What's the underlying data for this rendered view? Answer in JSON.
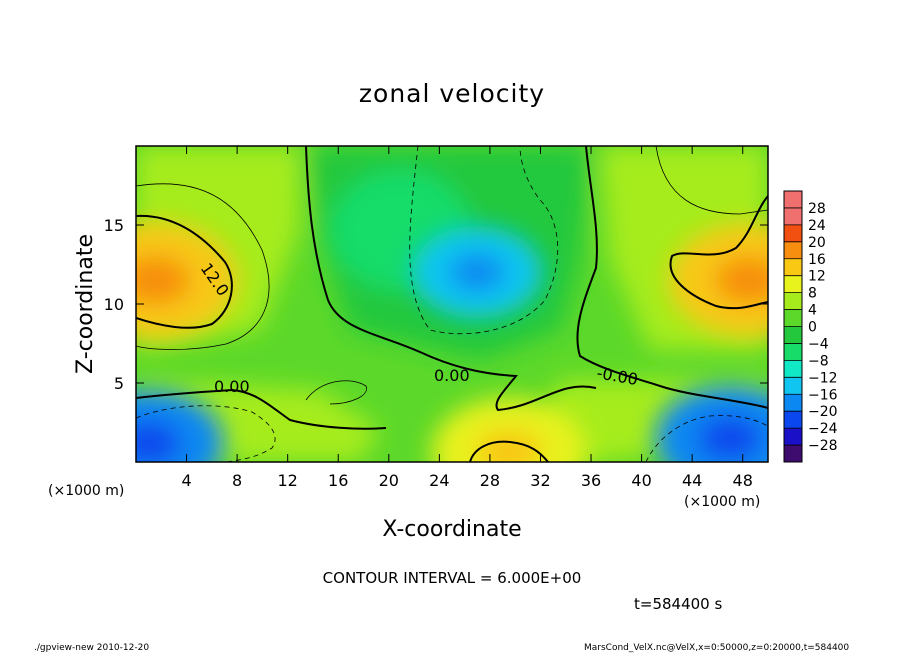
{
  "chart_data": {
    "type": "heatmap",
    "title": "zonal velocity",
    "xlabel": "X-coordinate",
    "ylabel": "Z-coordinate",
    "x_unit": "(×1000 m)",
    "y_unit": "(×1000 m)",
    "xlim": [
      0,
      50
    ],
    "ylim": [
      0,
      20
    ],
    "x_ticks": [
      4,
      8,
      12,
      16,
      20,
      24,
      28,
      32,
      36,
      40,
      44,
      48
    ],
    "y_ticks": [
      5,
      10,
      15
    ],
    "colorbar": {
      "levels": [
        -28,
        -24,
        -20,
        -16,
        -12,
        -8,
        -4,
        0,
        4,
        8,
        12,
        16,
        20,
        24,
        28
      ],
      "labels": [
        "28",
        "24",
        "20",
        "16",
        "12",
        "8",
        "4",
        "0",
        "−4",
        "−8",
        "−12",
        "−16",
        "−20",
        "−24",
        "−28"
      ],
      "colors": [
        "#3e0c6e",
        "#1a10c8",
        "#0a47ee",
        "#0b88f2",
        "#10c6f0",
        "#10e8c6",
        "#18dc6a",
        "#23c83c",
        "#5cd82a",
        "#a6ec1c",
        "#e8f21c",
        "#f8c814",
        "#f78e10",
        "#f25010",
        "#f07070"
      ]
    },
    "contour_labels": [
      "12.0",
      "0.00",
      "0.00",
      "-0.00"
    ],
    "contour_interval": "CONTOUR INTERVAL = 6.000E+00",
    "time": "t=584400 s",
    "features": [
      {
        "x": 1.5,
        "z": 11.5,
        "value": 17
      },
      {
        "x": 48.5,
        "z": 11.5,
        "value": 16
      },
      {
        "x": 27,
        "z": 12,
        "value": -10
      },
      {
        "x": 1,
        "z": 1.2,
        "value": -14
      },
      {
        "x": 47,
        "z": 1.5,
        "value": -14
      },
      {
        "x": 29.5,
        "z": 0.6,
        "value": 15
      }
    ]
  },
  "footer": {
    "left": "./gpview-new  2010-12-20",
    "right": "MarsCond_VelX.nc@VelX,x=0:50000,z=0:20000,t=584400"
  }
}
